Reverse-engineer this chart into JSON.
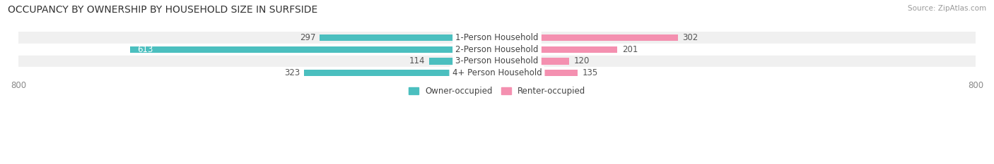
{
  "title": "OCCUPANCY BY OWNERSHIP BY HOUSEHOLD SIZE IN SURFSIDE",
  "source": "Source: ZipAtlas.com",
  "categories": [
    "1-Person Household",
    "2-Person Household",
    "3-Person Household",
    "4+ Person Household"
  ],
  "owner_values": [
    297,
    613,
    114,
    323
  ],
  "renter_values": [
    302,
    201,
    120,
    135
  ],
  "owner_color": "#4bbfbf",
  "renter_color": "#f490b0",
  "row_bg_even": "#f0f0f0",
  "row_bg_odd": "#ffffff",
  "xlim": 800,
  "legend_owner": "Owner-occupied",
  "legend_renter": "Renter-occupied",
  "title_fontsize": 10,
  "label_fontsize": 8.5,
  "value_fontsize": 8.5,
  "axis_fontsize": 8.5,
  "bar_height": 0.55,
  "figsize": [
    14.06,
    2.33
  ],
  "dpi": 100
}
